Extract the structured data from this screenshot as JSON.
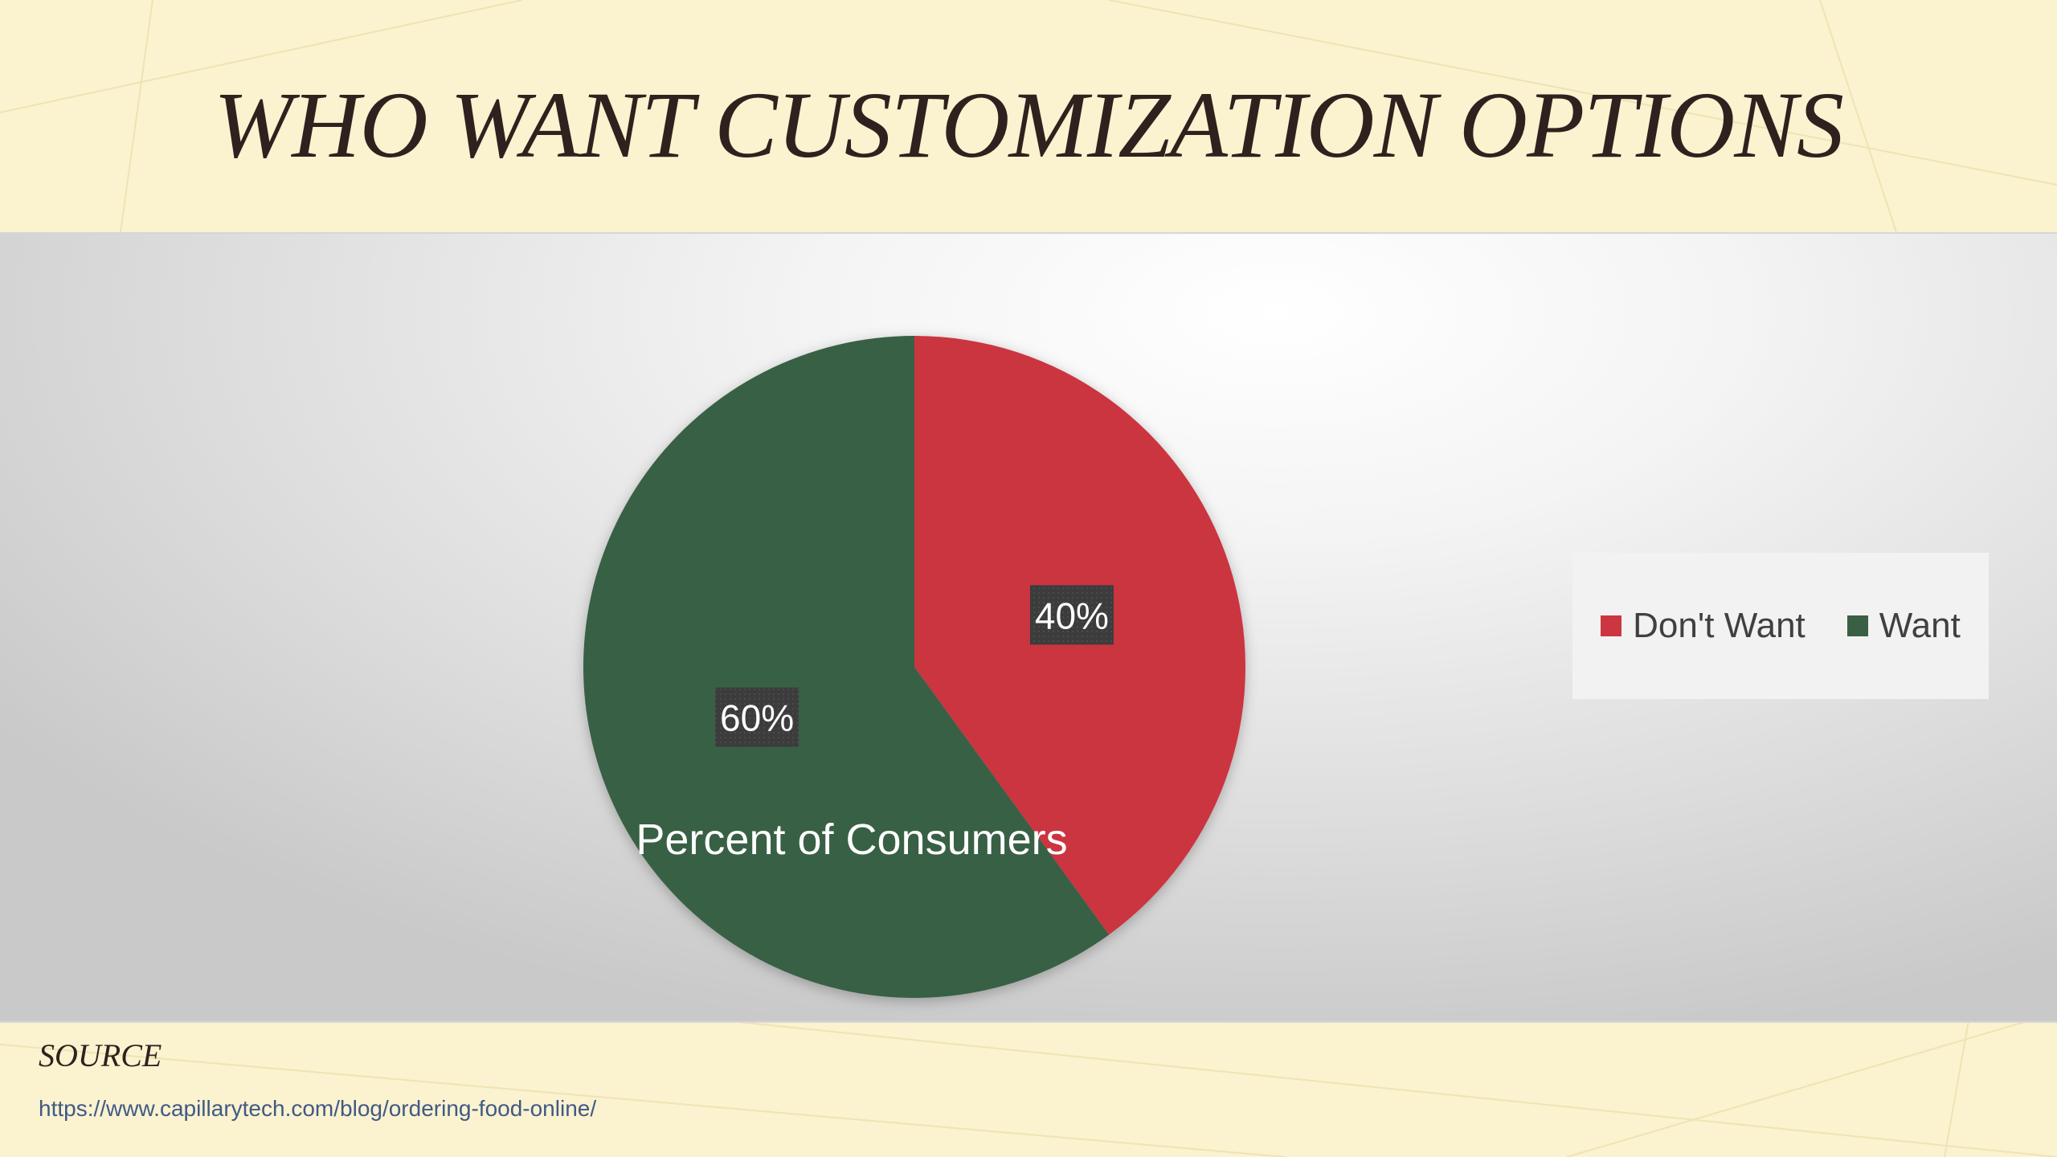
{
  "slide": {
    "title": "WHO WANT CUSTOMIZATION OPTIONS"
  },
  "chart_data": {
    "type": "pie",
    "title": "Percent of Consumers",
    "categories": [
      "Don't Want",
      "Want"
    ],
    "values": [
      40,
      60
    ],
    "data_labels": [
      "40%",
      "60%"
    ],
    "colors": [
      "#cb3641",
      "#396045"
    ],
    "legend": {
      "position": "right",
      "entries": [
        "Don't Want",
        "Want"
      ]
    },
    "start_angle_deg": 0,
    "direction": "clockwise"
  },
  "source": {
    "label": "SOURCE",
    "url": "https://www.capillarytech.com/blog/ordering-food-online/"
  },
  "colors": {
    "background": "#fbf2cf",
    "title_text": "#2e221f",
    "link": "#3f5a86"
  }
}
